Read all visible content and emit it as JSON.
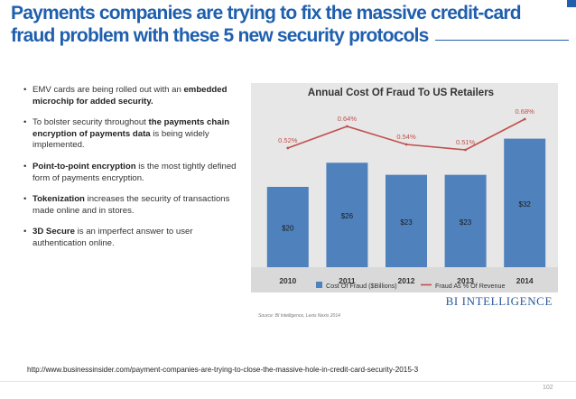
{
  "slide": {
    "title": "Payments companies are trying to fix the massive credit-card fraud problem with these 5 new security protocols",
    "bullets": [
      {
        "plain1": "EMV cards are being rolled out with an ",
        "bold": "embedded microchip for added security.",
        "plain2": ""
      },
      {
        "plain1": "To bolster security throughout ",
        "bold": "the payments chain encryption of payments data",
        "plain2": " is being widely implemented."
      },
      {
        "plain1": "",
        "bold": "Point-to-point encryption",
        "plain2": " is the most tightly defined form of payments encryption."
      },
      {
        "plain1": "",
        "bold": "Tokenization",
        "plain2": " increases the security of transactions made online and in stores."
      },
      {
        "plain1": "",
        "bold": "3D Secure",
        "plain2": " is an imperfect answer to user authentication online."
      }
    ],
    "source_url": "http://www.businessinsider.com/payment-companies-are-trying-to-close-the-massive-hole-in-credit-card-security-2015-3",
    "page_number": "102"
  },
  "chart_data": {
    "type": "bar",
    "title": "Annual Cost Of Fraud To US Retailers",
    "categories": [
      "2010",
      "2011",
      "2012",
      "2013",
      "2014"
    ],
    "series": [
      {
        "name": "Cost Of Fraud ($Billions)",
        "kind": "bar",
        "values": [
          20,
          26,
          23,
          23,
          32
        ],
        "labels": [
          "$20",
          "$26",
          "$23",
          "$23",
          "$32"
        ]
      },
      {
        "name": "Fraud As % Of Revenue",
        "kind": "line",
        "values": [
          0.52,
          0.64,
          0.54,
          0.51,
          0.68
        ],
        "labels": [
          "0.52%",
          "0.64%",
          "0.54%",
          "0.51%",
          "0.68%"
        ]
      }
    ],
    "bar_ylim": [
      0,
      40
    ],
    "line_ylim": [
      0.4,
      0.7
    ],
    "legend_position": "bottom",
    "source": "Source: BI Intelligence, Lexis Nexis 2014",
    "brand": "BI INTELLIGENCE",
    "colors": {
      "bar": "#4f81bd",
      "line": "#c0504d",
      "panel": "#e7e7e7",
      "grid": "#ffffff"
    }
  }
}
